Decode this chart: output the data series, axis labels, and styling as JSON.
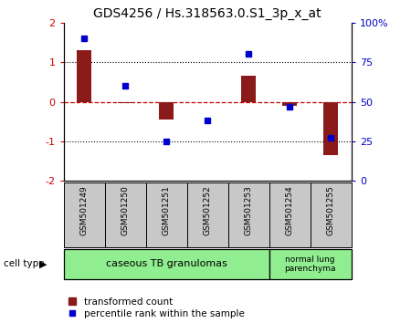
{
  "title": "GDS4256 / Hs.318563.0.S1_3p_x_at",
  "samples": [
    "GSM501249",
    "GSM501250",
    "GSM501251",
    "GSM501252",
    "GSM501253",
    "GSM501254",
    "GSM501255"
  ],
  "transformed_count": [
    1.3,
    -0.04,
    -0.45,
    0.0,
    0.65,
    -0.1,
    -1.35
  ],
  "percentile_rank": [
    90,
    60,
    25,
    38,
    80,
    47,
    27
  ],
  "ylim_left": [
    -2,
    2
  ],
  "ylim_right": [
    0,
    100
  ],
  "yticks_left": [
    -2,
    -1,
    0,
    1,
    2
  ],
  "yticks_right": [
    0,
    25,
    50,
    75,
    100
  ],
  "ytick_labels_right": [
    "0",
    "25",
    "50",
    "75",
    "100%"
  ],
  "bar_color": "#8B1A1A",
  "dot_color": "#0000CC",
  "label_bg_color": "#C8C8C8",
  "group1_label": "caseous TB granulomas",
  "group1_color": "#90EE90",
  "group1_sample_count": 5,
  "group2_label": "normal lung\nparenchyma",
  "group2_color": "#90EE90",
  "group2_sample_count": 2,
  "cell_type_label": "cell type",
  "legend_bar_label": "transformed count",
  "legend_dot_label": "percentile rank within the sample",
  "bar_width": 0.35
}
